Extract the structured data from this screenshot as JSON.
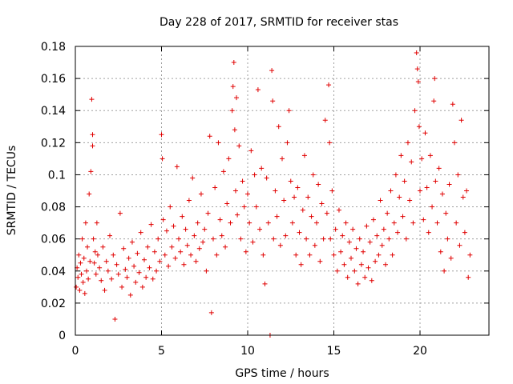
{
  "chart_data": {
    "type": "scatter",
    "title": "Day 228 of 2017, SRMTID for receiver stas",
    "xlabel": "GPS time / hours",
    "ylabel": "SRMTID / TECUs",
    "xlim": [
      0,
      24
    ],
    "ylim": [
      0,
      0.18
    ],
    "x_ticks": [
      0,
      5,
      10,
      15,
      20
    ],
    "y_ticks": [
      0,
      0.02,
      0.04,
      0.06,
      0.08,
      0.1,
      0.12,
      0.14,
      0.16,
      0.18
    ],
    "x_tick_labels": [
      "0",
      "5",
      "10",
      "15",
      "20"
    ],
    "y_tick_labels": [
      "0",
      "0.02",
      "0.04",
      "0.06",
      "0.08",
      "0.1",
      "0.12",
      "0.14",
      "0.16",
      "0.18"
    ],
    "grid": true,
    "marker": "+",
    "color": "#e00000",
    "series": [
      {
        "name": "SRMTID",
        "points": [
          [
            0.05,
            0.03
          ],
          [
            0.1,
            0.042
          ],
          [
            0.15,
            0.036
          ],
          [
            0.2,
            0.05
          ],
          [
            0.25,
            0.028
          ],
          [
            0.3,
            0.045
          ],
          [
            0.35,
            0.038
          ],
          [
            0.4,
            0.06
          ],
          [
            0.45,
            0.033
          ],
          [
            0.5,
            0.048
          ],
          [
            0.55,
            0.026
          ],
          [
            0.6,
            0.07
          ],
          [
            0.65,
            0.04
          ],
          [
            0.7,
            0.055
          ],
          [
            0.75,
            0.035
          ],
          [
            0.8,
            0.088
          ],
          [
            0.85,
            0.046
          ],
          [
            0.9,
            0.102
          ],
          [
            0.95,
            0.147
          ],
          [
            1.0,
            0.118
          ],
          [
            1.0,
            0.125
          ],
          [
            1.05,
            0.06
          ],
          [
            1.1,
            0.045
          ],
          [
            1.15,
            0.052
          ],
          [
            1.2,
            0.038
          ],
          [
            1.25,
            0.07
          ],
          [
            1.3,
            0.05
          ],
          [
            1.4,
            0.042
          ],
          [
            1.5,
            0.034
          ],
          [
            1.6,
            0.055
          ],
          [
            1.7,
            0.028
          ],
          [
            1.8,
            0.046
          ],
          [
            1.9,
            0.04
          ],
          [
            2.0,
            0.062
          ],
          [
            2.1,
            0.035
          ],
          [
            2.2,
            0.05
          ],
          [
            2.3,
            0.01
          ],
          [
            2.4,
            0.044
          ],
          [
            2.5,
            0.038
          ],
          [
            2.6,
            0.076
          ],
          [
            2.7,
            0.03
          ],
          [
            2.8,
            0.054
          ],
          [
            2.9,
            0.041
          ],
          [
            3.0,
            0.036
          ],
          [
            3.1,
            0.048
          ],
          [
            3.2,
            0.025
          ],
          [
            3.3,
            0.058
          ],
          [
            3.4,
            0.043
          ],
          [
            3.5,
            0.033
          ],
          [
            3.6,
            0.051
          ],
          [
            3.7,
            0.039
          ],
          [
            3.8,
            0.064
          ],
          [
            3.9,
            0.03
          ],
          [
            4.0,
            0.047
          ],
          [
            4.1,
            0.036
          ],
          [
            4.2,
            0.055
          ],
          [
            4.3,
            0.042
          ],
          [
            4.4,
            0.069
          ],
          [
            4.5,
            0.035
          ],
          [
            4.6,
            0.052
          ],
          [
            4.7,
            0.04
          ],
          [
            4.8,
            0.06
          ],
          [
            4.9,
            0.046
          ],
          [
            5.0,
            0.125
          ],
          [
            5.05,
            0.11
          ],
          [
            5.1,
            0.072
          ],
          [
            5.2,
            0.05
          ],
          [
            5.3,
            0.065
          ],
          [
            5.4,
            0.043
          ],
          [
            5.5,
            0.08
          ],
          [
            5.6,
            0.055
          ],
          [
            5.7,
            0.068
          ],
          [
            5.8,
            0.048
          ],
          [
            5.9,
            0.105
          ],
          [
            6.0,
            0.06
          ],
          [
            6.1,
            0.052
          ],
          [
            6.2,
            0.074
          ],
          [
            6.3,
            0.044
          ],
          [
            6.4,
            0.066
          ],
          [
            6.5,
            0.056
          ],
          [
            6.6,
            0.084
          ],
          [
            6.7,
            0.05
          ],
          [
            6.8,
            0.098
          ],
          [
            6.9,
            0.062
          ],
          [
            7.0,
            0.046
          ],
          [
            7.1,
            0.07
          ],
          [
            7.2,
            0.054
          ],
          [
            7.3,
            0.088
          ],
          [
            7.4,
            0.058
          ],
          [
            7.5,
            0.066
          ],
          [
            7.6,
            0.04
          ],
          [
            7.7,
            0.076
          ],
          [
            7.8,
            0.124
          ],
          [
            7.9,
            0.014
          ],
          [
            8.0,
            0.06
          ],
          [
            8.1,
            0.092
          ],
          [
            8.2,
            0.05
          ],
          [
            8.3,
            0.12
          ],
          [
            8.4,
            0.072
          ],
          [
            8.5,
            0.062
          ],
          [
            8.6,
            0.102
          ],
          [
            8.7,
            0.055
          ],
          [
            8.8,
            0.082
          ],
          [
            8.9,
            0.11
          ],
          [
            9.0,
            0.07
          ],
          [
            9.1,
            0.14
          ],
          [
            9.15,
            0.155
          ],
          [
            9.2,
            0.17
          ],
          [
            9.25,
            0.128
          ],
          [
            9.3,
            0.09
          ],
          [
            9.35,
            0.148
          ],
          [
            9.4,
            0.075
          ],
          [
            9.5,
            0.118
          ],
          [
            9.6,
            0.06
          ],
          [
            9.7,
            0.096
          ],
          [
            9.8,
            0.08
          ],
          [
            9.9,
            0.052
          ],
          [
            10.0,
            0.088
          ],
          [
            10.1,
            0.07
          ],
          [
            10.2,
            0.115
          ],
          [
            10.3,
            0.058
          ],
          [
            10.4,
            0.1
          ],
          [
            10.5,
            0.08
          ],
          [
            10.6,
            0.153
          ],
          [
            10.7,
            0.066
          ],
          [
            10.8,
            0.104
          ],
          [
            10.9,
            0.05
          ],
          [
            11.0,
            0.032
          ],
          [
            11.1,
            0.098
          ],
          [
            11.2,
            0.07
          ],
          [
            11.3,
            0.0
          ],
          [
            11.4,
            0.165
          ],
          [
            11.45,
            0.146
          ],
          [
            11.5,
            0.06
          ],
          [
            11.6,
            0.09
          ],
          [
            11.7,
            0.074
          ],
          [
            11.8,
            0.13
          ],
          [
            11.9,
            0.056
          ],
          [
            12.0,
            0.11
          ],
          [
            12.1,
            0.084
          ],
          [
            12.2,
            0.062
          ],
          [
            12.3,
            0.12
          ],
          [
            12.4,
            0.14
          ],
          [
            12.5,
            0.096
          ],
          [
            12.6,
            0.07
          ],
          [
            12.7,
            0.086
          ],
          [
            12.8,
            0.05
          ],
          [
            12.9,
            0.092
          ],
          [
            13.0,
            0.064
          ],
          [
            13.1,
            0.044
          ],
          [
            13.2,
            0.078
          ],
          [
            13.3,
            0.112
          ],
          [
            13.4,
            0.06
          ],
          [
            13.5,
            0.086
          ],
          [
            13.6,
            0.05
          ],
          [
            13.7,
            0.074
          ],
          [
            13.8,
            0.1
          ],
          [
            13.9,
            0.056
          ],
          [
            14.0,
            0.07
          ],
          [
            14.1,
            0.094
          ],
          [
            14.2,
            0.046
          ],
          [
            14.3,
            0.082
          ],
          [
            14.4,
            0.06
          ],
          [
            14.5,
            0.134
          ],
          [
            14.6,
            0.076
          ],
          [
            14.7,
            0.156
          ],
          [
            14.75,
            0.12
          ],
          [
            14.8,
            0.06
          ],
          [
            14.9,
            0.09
          ],
          [
            15.0,
            0.05
          ],
          [
            15.1,
            0.066
          ],
          [
            15.2,
            0.04
          ],
          [
            15.3,
            0.078
          ],
          [
            15.4,
            0.052
          ],
          [
            15.5,
            0.062
          ],
          [
            15.6,
            0.044
          ],
          [
            15.7,
            0.07
          ],
          [
            15.8,
            0.036
          ],
          [
            15.9,
            0.058
          ],
          [
            16.0,
            0.048
          ],
          [
            16.1,
            0.066
          ],
          [
            16.2,
            0.04
          ],
          [
            16.3,
            0.054
          ],
          [
            16.4,
            0.032
          ],
          [
            16.5,
            0.06
          ],
          [
            16.6,
            0.044
          ],
          [
            16.7,
            0.052
          ],
          [
            16.8,
            0.036
          ],
          [
            16.9,
            0.068
          ],
          [
            17.0,
            0.042
          ],
          [
            17.1,
            0.058
          ],
          [
            17.2,
            0.034
          ],
          [
            17.3,
            0.072
          ],
          [
            17.4,
            0.046
          ],
          [
            17.5,
            0.062
          ],
          [
            17.6,
            0.05
          ],
          [
            17.7,
            0.084
          ],
          [
            17.8,
            0.056
          ],
          [
            17.9,
            0.066
          ],
          [
            18.0,
            0.044
          ],
          [
            18.1,
            0.076
          ],
          [
            18.2,
            0.06
          ],
          [
            18.3,
            0.09
          ],
          [
            18.4,
            0.05
          ],
          [
            18.5,
            0.07
          ],
          [
            18.6,
            0.1
          ],
          [
            18.7,
            0.064
          ],
          [
            18.8,
            0.086
          ],
          [
            18.9,
            0.112
          ],
          [
            19.0,
            0.074
          ],
          [
            19.1,
            0.096
          ],
          [
            19.2,
            0.06
          ],
          [
            19.3,
            0.12
          ],
          [
            19.4,
            0.084
          ],
          [
            19.5,
            0.108
          ],
          [
            19.6,
            0.07
          ],
          [
            19.7,
            0.14
          ],
          [
            19.8,
            0.176
          ],
          [
            19.85,
            0.166
          ],
          [
            19.9,
            0.158
          ],
          [
            19.95,
            0.13
          ],
          [
            20.0,
            0.09
          ],
          [
            20.1,
            0.11
          ],
          [
            20.2,
            0.072
          ],
          [
            20.3,
            0.126
          ],
          [
            20.4,
            0.092
          ],
          [
            20.5,
            0.064
          ],
          [
            20.6,
            0.112
          ],
          [
            20.7,
            0.08
          ],
          [
            20.8,
            0.146
          ],
          [
            20.85,
            0.16
          ],
          [
            20.9,
            0.096
          ],
          [
            21.0,
            0.07
          ],
          [
            21.1,
            0.104
          ],
          [
            21.2,
            0.052
          ],
          [
            21.3,
            0.088
          ],
          [
            21.4,
            0.04
          ],
          [
            21.5,
            0.076
          ],
          [
            21.6,
            0.06
          ],
          [
            21.7,
            0.094
          ],
          [
            21.8,
            0.048
          ],
          [
            21.9,
            0.144
          ],
          [
            22.0,
            0.12
          ],
          [
            22.1,
            0.07
          ],
          [
            22.2,
            0.1
          ],
          [
            22.3,
            0.056
          ],
          [
            22.4,
            0.134
          ],
          [
            22.5,
            0.086
          ],
          [
            22.6,
            0.064
          ],
          [
            22.7,
            0.09
          ],
          [
            22.8,
            0.036
          ],
          [
            22.9,
            0.05
          ]
        ]
      }
    ]
  }
}
